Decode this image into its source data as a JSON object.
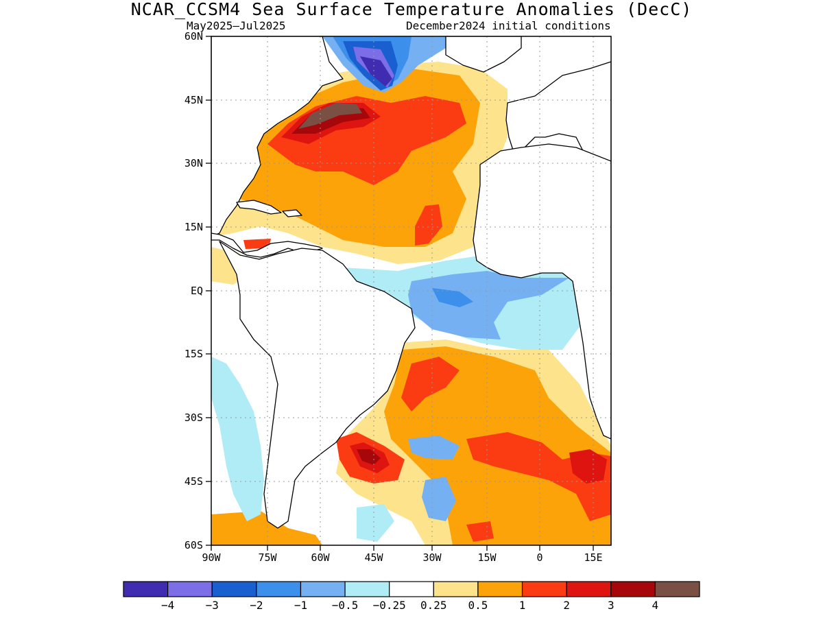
{
  "title": "NCAR_CCSM4 Sea Surface Temperature Anomalies (DecC)",
  "subtitle_left": "May2025–Jul2025",
  "subtitle_right": "December2024 initial conditions",
  "lat_labels": [
    "60N",
    "45N",
    "30N",
    "15N",
    "EQ",
    "15S",
    "30S",
    "45S",
    "60S"
  ],
  "lon_labels": [
    "90W",
    "75W",
    "60W",
    "45W",
    "30W",
    "15W",
    "0",
    "15E"
  ],
  "colorbar": {
    "colors": [
      "#3f2cb0",
      "#7b6ee6",
      "#1a5fd0",
      "#3c8fea",
      "#74b0f2",
      "#b0ecf6",
      "#ffffff",
      "#fde38c",
      "#fca30a",
      "#fb3c12",
      "#dd140f",
      "#a5070a",
      "#7a5045"
    ],
    "labels": [
      "−4",
      "−3",
      "−2",
      "−1",
      "−0.5",
      "−0.25",
      "0.25",
      "0.5",
      "1",
      "2",
      "3",
      "4"
    ]
  },
  "map": {
    "lat_range": [
      -60,
      60
    ],
    "lon_range": [
      -90,
      16
    ]
  }
}
